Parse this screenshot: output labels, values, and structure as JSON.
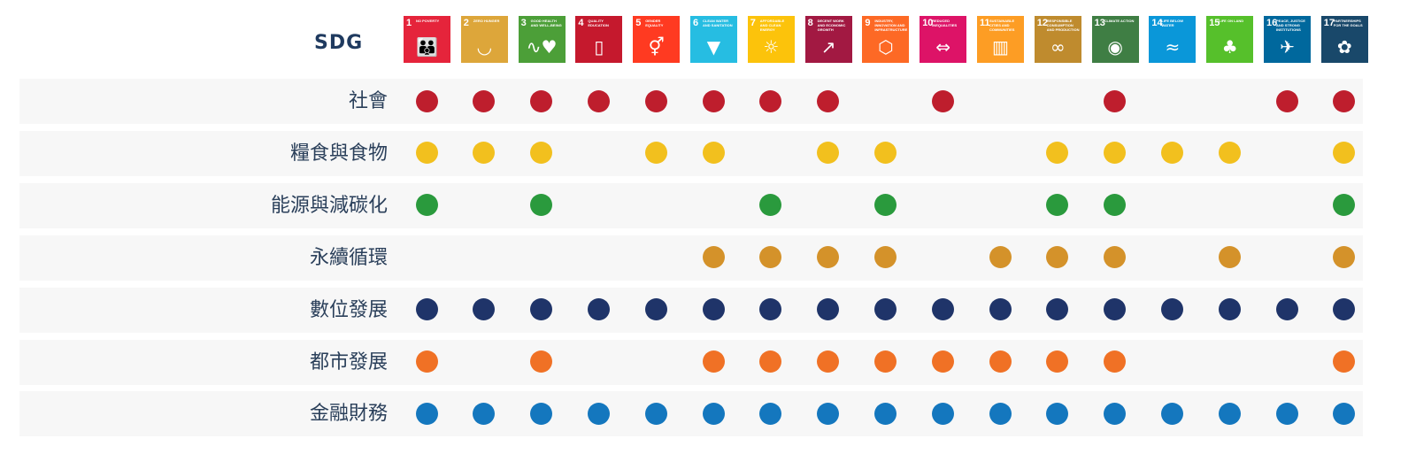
{
  "header_label": "SDG",
  "chart_data": {
    "type": "table",
    "columns": [
      {
        "num": "1",
        "title": "No Poverty",
        "color": "#e5243b",
        "icon": "family-icon"
      },
      {
        "num": "2",
        "title": "Zero Hunger",
        "color": "#dda63a",
        "icon": "bowl-icon"
      },
      {
        "num": "3",
        "title": "Good Health and Well-Being",
        "color": "#4c9f38",
        "icon": "heartbeat-icon"
      },
      {
        "num": "4",
        "title": "Quality Education",
        "color": "#c5192d",
        "icon": "book-icon"
      },
      {
        "num": "5",
        "title": "Gender Equality",
        "color": "#ff3a21",
        "icon": "gender-icon"
      },
      {
        "num": "6",
        "title": "Clean Water and Sanitation",
        "color": "#26bde2",
        "icon": "water-icon"
      },
      {
        "num": "7",
        "title": "Affordable and Clean Energy",
        "color": "#fcc30b",
        "icon": "sun-icon"
      },
      {
        "num": "8",
        "title": "Decent Work and Economic Growth",
        "color": "#a21942",
        "icon": "growth-chart-icon"
      },
      {
        "num": "9",
        "title": "Industry, Innovation and Infrastructure",
        "color": "#fd6925",
        "icon": "cubes-icon"
      },
      {
        "num": "10",
        "title": "Reduced Inequalities",
        "color": "#dd1367",
        "icon": "equal-arrows-icon"
      },
      {
        "num": "11",
        "title": "Sustainable Cities and Communities",
        "color": "#fd9d24",
        "icon": "city-icon"
      },
      {
        "num": "12",
        "title": "Responsible Consumption and Production",
        "color": "#bf8b2e",
        "icon": "infinity-icon"
      },
      {
        "num": "13",
        "title": "Climate Action",
        "color": "#3f7e44",
        "icon": "eye-globe-icon"
      },
      {
        "num": "14",
        "title": "Life Below Water",
        "color": "#0a97d9",
        "icon": "fish-icon"
      },
      {
        "num": "15",
        "title": "Life on Land",
        "color": "#56c02b",
        "icon": "tree-icon"
      },
      {
        "num": "16",
        "title": "Peace, Justice and Strong Institutions",
        "color": "#00689d",
        "icon": "dove-icon"
      },
      {
        "num": "17",
        "title": "Partnerships for the Goals",
        "color": "#19486a",
        "icon": "rings-icon"
      }
    ],
    "rows": [
      {
        "label": "社會",
        "color": "#be1e2d",
        "goals": [
          1,
          2,
          3,
          4,
          5,
          6,
          7,
          8,
          10,
          13,
          16,
          17
        ]
      },
      {
        "label": "糧食與食物",
        "color": "#f2c01e",
        "goals": [
          1,
          2,
          3,
          5,
          6,
          8,
          9,
          12,
          13,
          14,
          15,
          17
        ]
      },
      {
        "label": "能源與減碳化",
        "color": "#2a9a3d",
        "goals": [
          1,
          3,
          7,
          9,
          12,
          13,
          17
        ]
      },
      {
        "label": "永續循環",
        "color": "#d4922a",
        "goals": [
          6,
          7,
          8,
          9,
          11,
          12,
          13,
          15,
          17
        ]
      },
      {
        "label": "數位發展",
        "color": "#1f3469",
        "goals": [
          1,
          2,
          3,
          4,
          5,
          6,
          7,
          8,
          9,
          10,
          11,
          12,
          13,
          14,
          15,
          16,
          17
        ]
      },
      {
        "label": "都市發展",
        "color": "#f07125",
        "goals": [
          1,
          3,
          6,
          7,
          8,
          9,
          10,
          11,
          12,
          13,
          17
        ]
      },
      {
        "label": "金融財務",
        "color": "#1477be",
        "goals": [
          1,
          2,
          3,
          4,
          5,
          6,
          7,
          8,
          9,
          10,
          11,
          12,
          13,
          14,
          15,
          16,
          17
        ]
      }
    ]
  }
}
